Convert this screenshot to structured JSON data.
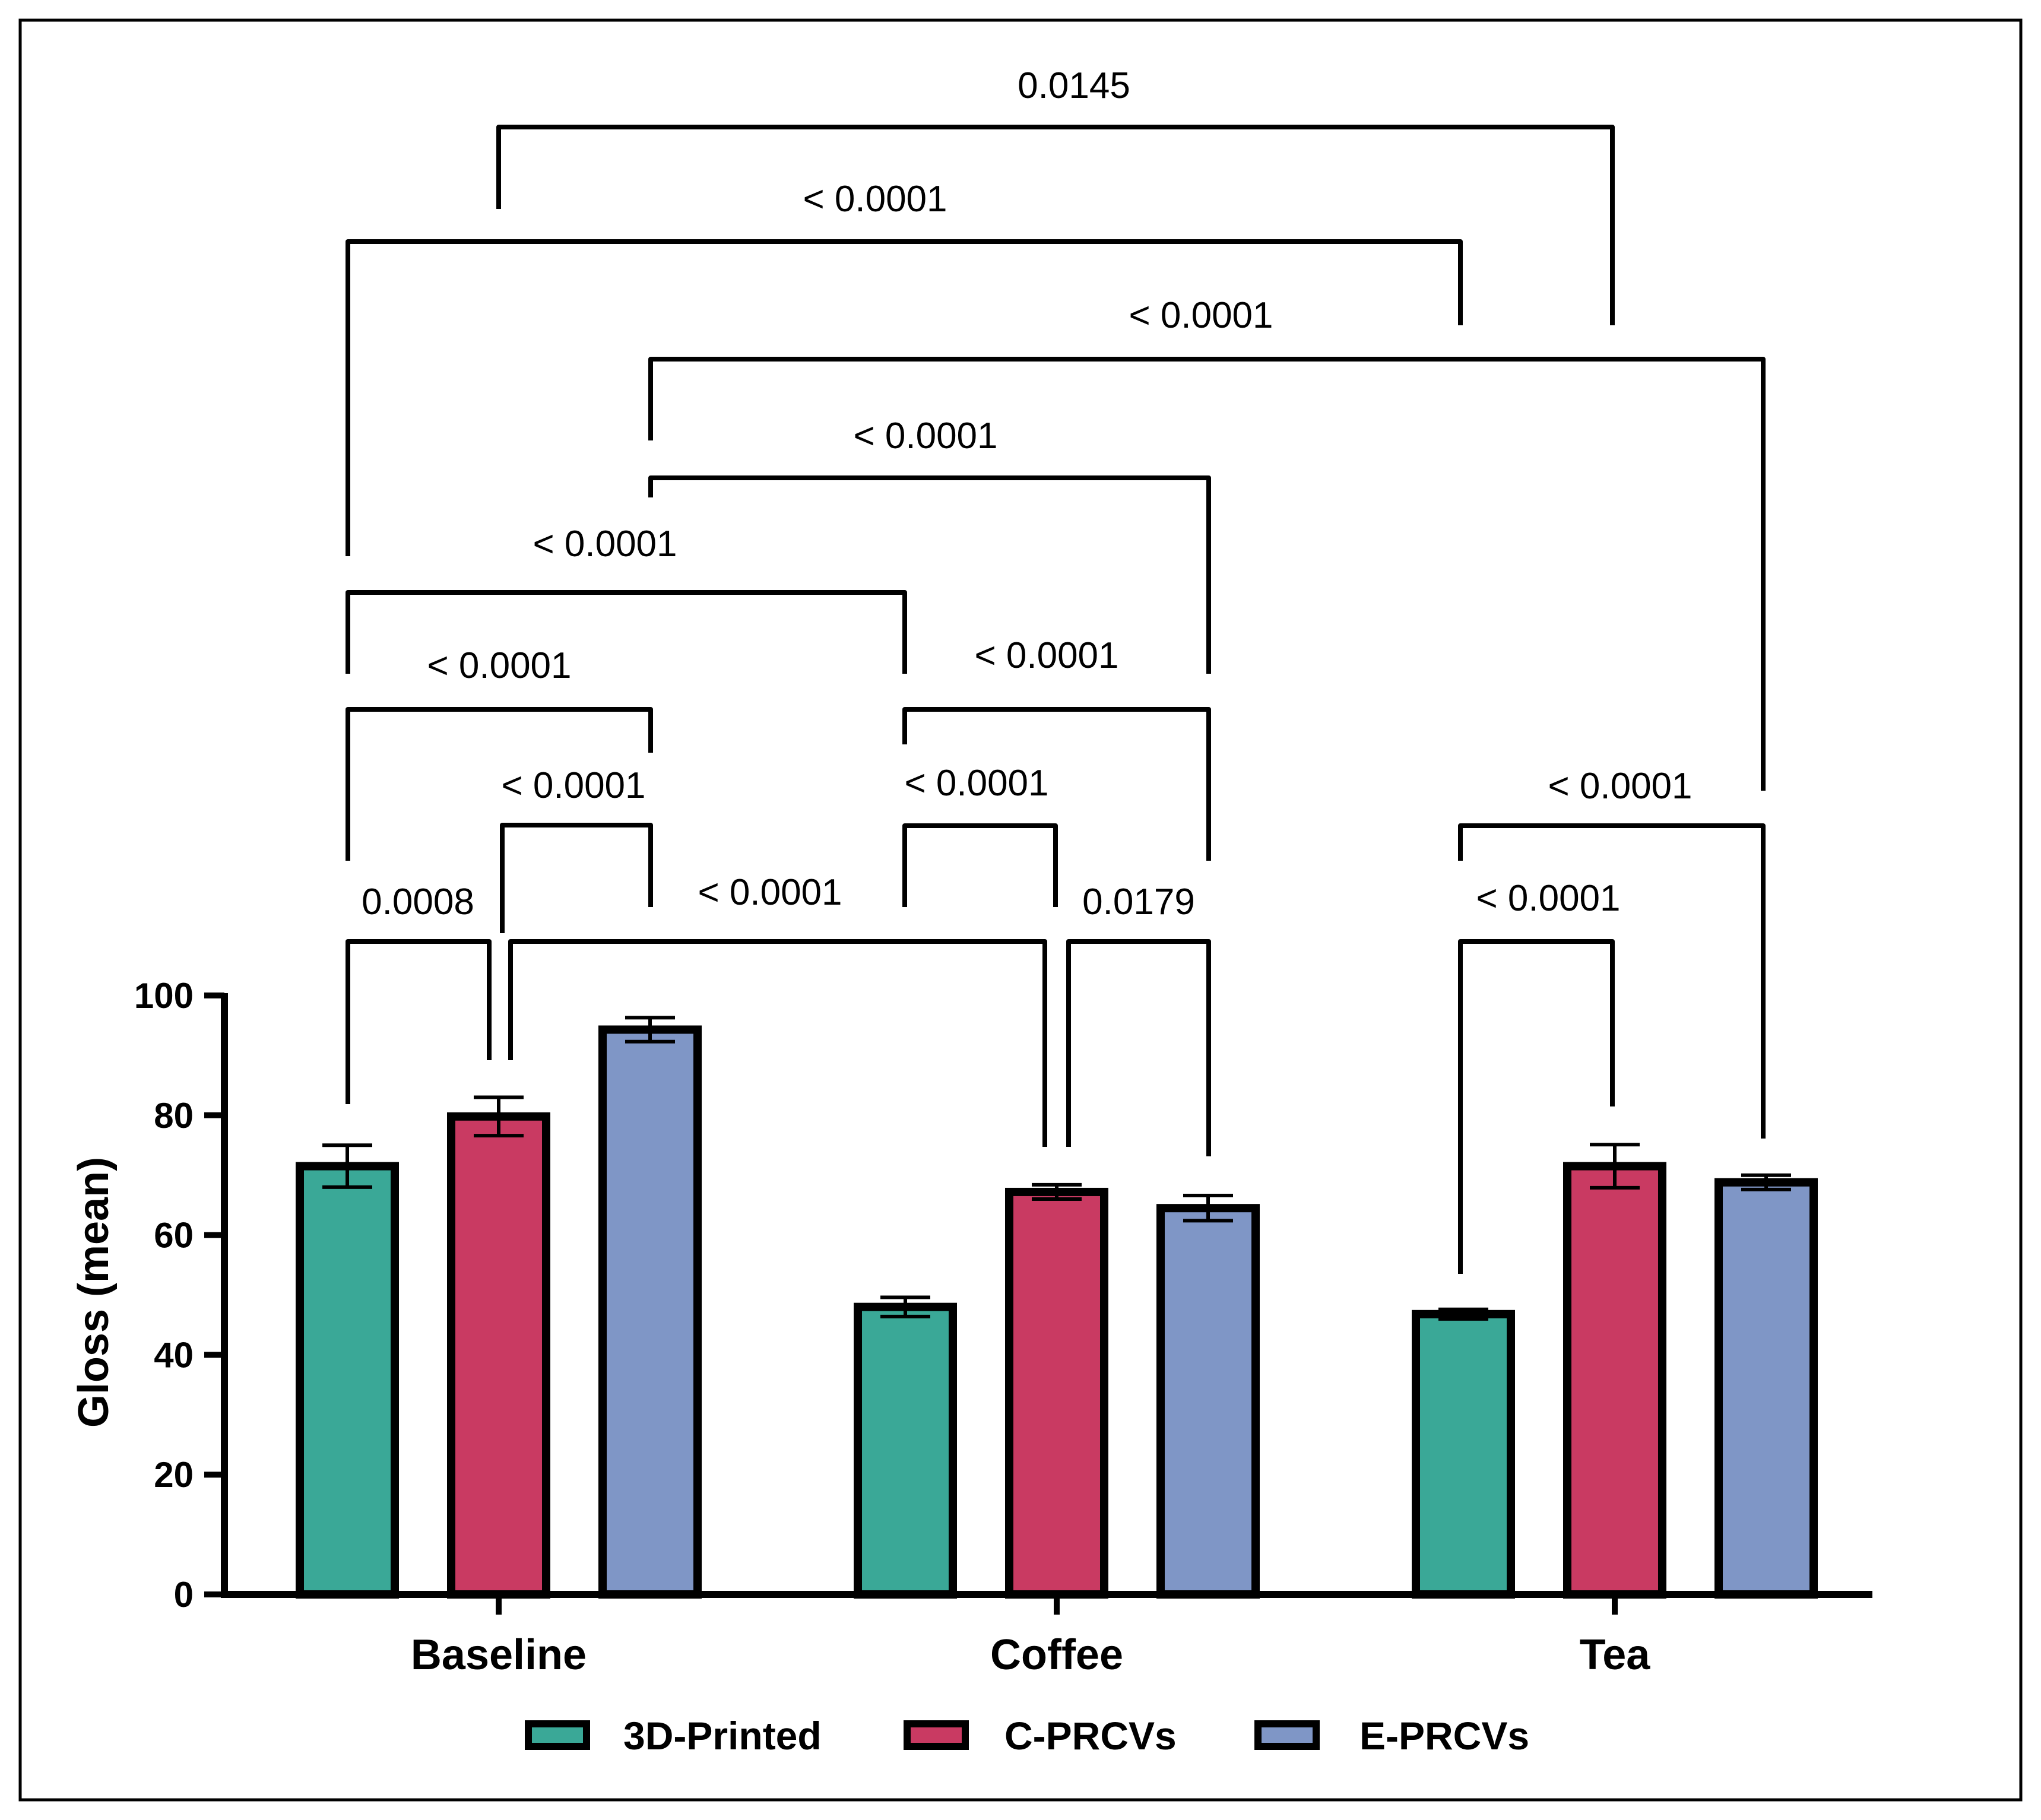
{
  "chart_data": {
    "type": "bar",
    "title": "",
    "xlabel": "",
    "ylabel": "Gloss (mean)",
    "ylim": [
      0,
      100
    ],
    "yticks": [
      0,
      20,
      40,
      60,
      80,
      100
    ],
    "grid": false,
    "legend_position": "bottom-center",
    "categories": [
      "Baseline",
      "Coffee",
      "Tea"
    ],
    "series": [
      {
        "name": "3D-Printed",
        "color": "#3aa897",
        "values": [
          71.5,
          48.0,
          46.8
        ],
        "errors": [
          3.5,
          1.6,
          0.8
        ]
      },
      {
        "name": "C-PRCVs",
        "color": "#c93a62",
        "values": [
          79.8,
          67.2,
          71.5
        ],
        "errors": [
          3.2,
          1.2,
          3.6
        ]
      },
      {
        "name": "E-PRCVs",
        "color": "#7f96c6",
        "values": [
          94.3,
          64.5,
          68.8
        ],
        "errors": [
          2.0,
          2.1,
          1.2
        ]
      }
    ],
    "comparisons": [
      {
        "from": [
          0,
          0
        ],
        "to": [
          0,
          1
        ],
        "label": "0.0008"
      },
      {
        "from": [
          0,
          1
        ],
        "to": [
          0,
          2
        ],
        "label": "< 0.0001"
      },
      {
        "from": [
          0,
          0
        ],
        "to": [
          0,
          2
        ],
        "label": "< 0.0001"
      },
      {
        "from": [
          0,
          0
        ],
        "to": [
          1,
          0
        ],
        "label": "< 0.0001"
      },
      {
        "from": [
          0,
          0
        ],
        "to": [
          2,
          0
        ],
        "label": "< 0.0001"
      },
      {
        "from": [
          0,
          1
        ],
        "to": [
          1,
          1
        ],
        "label": "< 0.0001"
      },
      {
        "from": [
          0,
          1
        ],
        "to": [
          2,
          1
        ],
        "label": "0.0145"
      },
      {
        "from": [
          0,
          2
        ],
        "to": [
          1,
          2
        ],
        "label": "< 0.0001"
      },
      {
        "from": [
          0,
          2
        ],
        "to": [
          2,
          2
        ],
        "label": "< 0.0001"
      },
      {
        "from": [
          1,
          0
        ],
        "to": [
          1,
          1
        ],
        "label": "< 0.0001"
      },
      {
        "from": [
          1,
          1
        ],
        "to": [
          1,
          2
        ],
        "label": "0.0179"
      },
      {
        "from": [
          1,
          0
        ],
        "to": [
          1,
          2
        ],
        "label": "< 0.0001"
      },
      {
        "from": [
          2,
          0
        ],
        "to": [
          2,
          1
        ],
        "label": "< 0.0001"
      },
      {
        "from": [
          2,
          0
        ],
        "to": [
          2,
          2
        ],
        "label": "< 0.0001"
      }
    ]
  }
}
